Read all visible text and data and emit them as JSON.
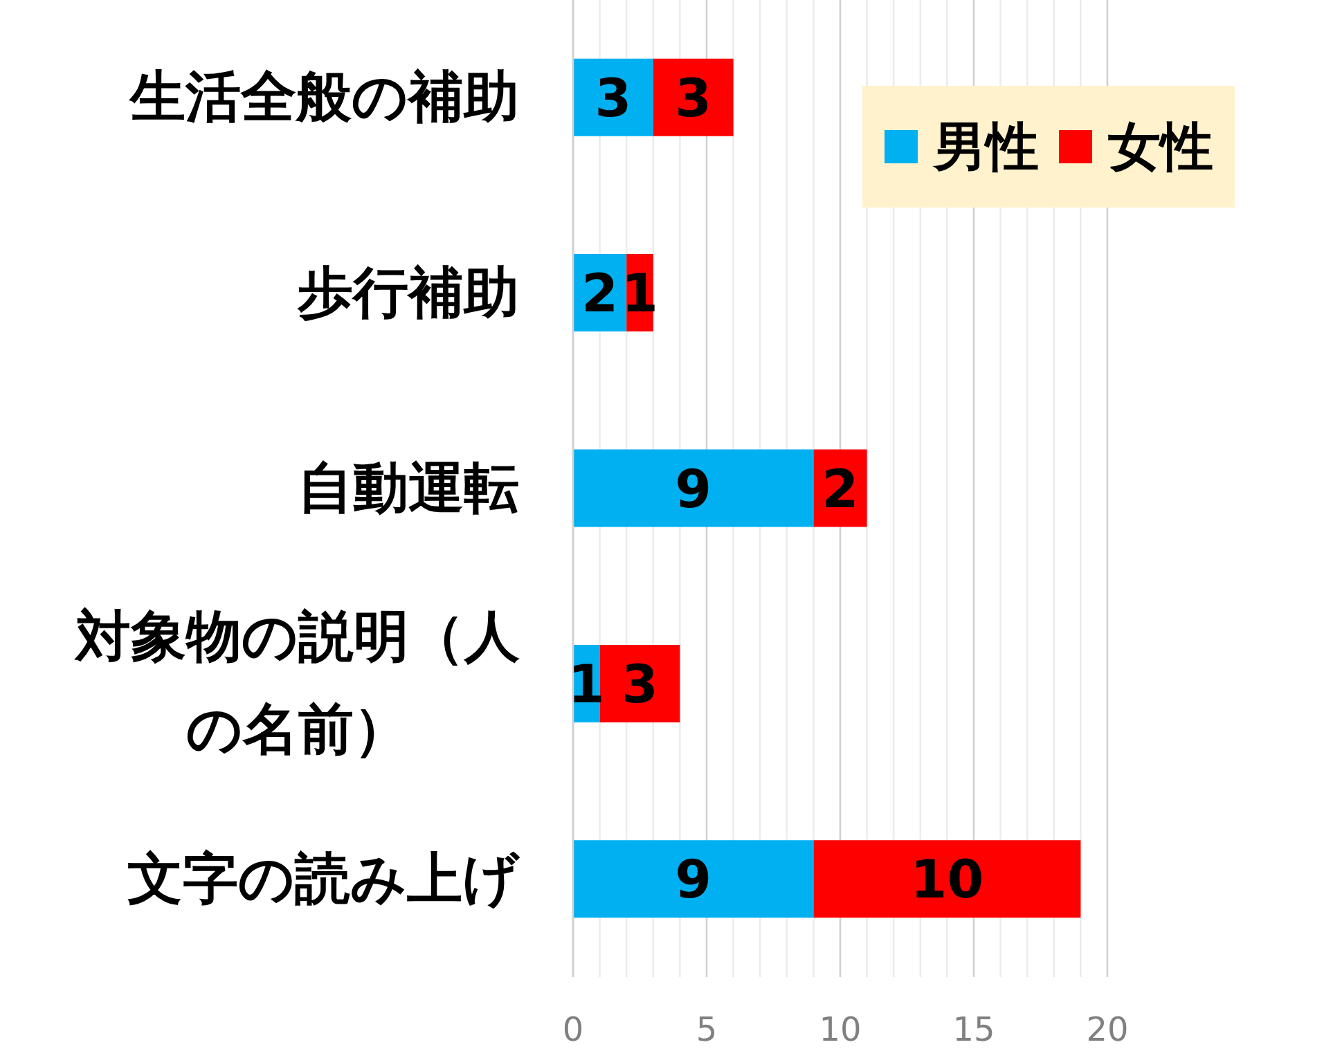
{
  "chart_data": {
    "type": "bar",
    "orientation": "horizontal",
    "stacked": true,
    "categories": [
      "生活全般の補助",
      "歩行補助",
      "自動運転",
      "対象物の説明（人の名前）",
      "文字の読み上げ"
    ],
    "series": [
      {
        "name": "男性",
        "color": "#00b0f0",
        "values": [
          3,
          2,
          9,
          1,
          9
        ]
      },
      {
        "name": "女性",
        "color": "#ff0000",
        "values": [
          3,
          1,
          2,
          3,
          10
        ]
      }
    ],
    "xlim": [
      0,
      20
    ],
    "xticks": [
      0,
      {
        "value": 1,
        "label": null
      },
      {
        "value": 2,
        "label": null
      },
      {
        "value": 3,
        "label": null
      },
      {
        "value": 4,
        "label": null
      },
      5,
      {
        "value": 6,
        "label": null
      },
      {
        "value": 7,
        "label": null
      },
      {
        "value": 8,
        "label": null
      },
      {
        "value": 9,
        "label": null
      },
      10,
      {
        "value": 11,
        "label": null
      },
      {
        "value": 12,
        "label": null
      },
      {
        "value": 13,
        "label": null
      },
      {
        "value": 14,
        "label": null
      },
      15,
      {
        "value": 16,
        "label": null
      },
      {
        "value": 17,
        "label": null
      },
      {
        "value": 18,
        "label": null
      },
      {
        "value": 19,
        "label": null
      },
      20
    ],
    "grid": "x",
    "legend": "top right",
    "data_labels": true
  }
}
